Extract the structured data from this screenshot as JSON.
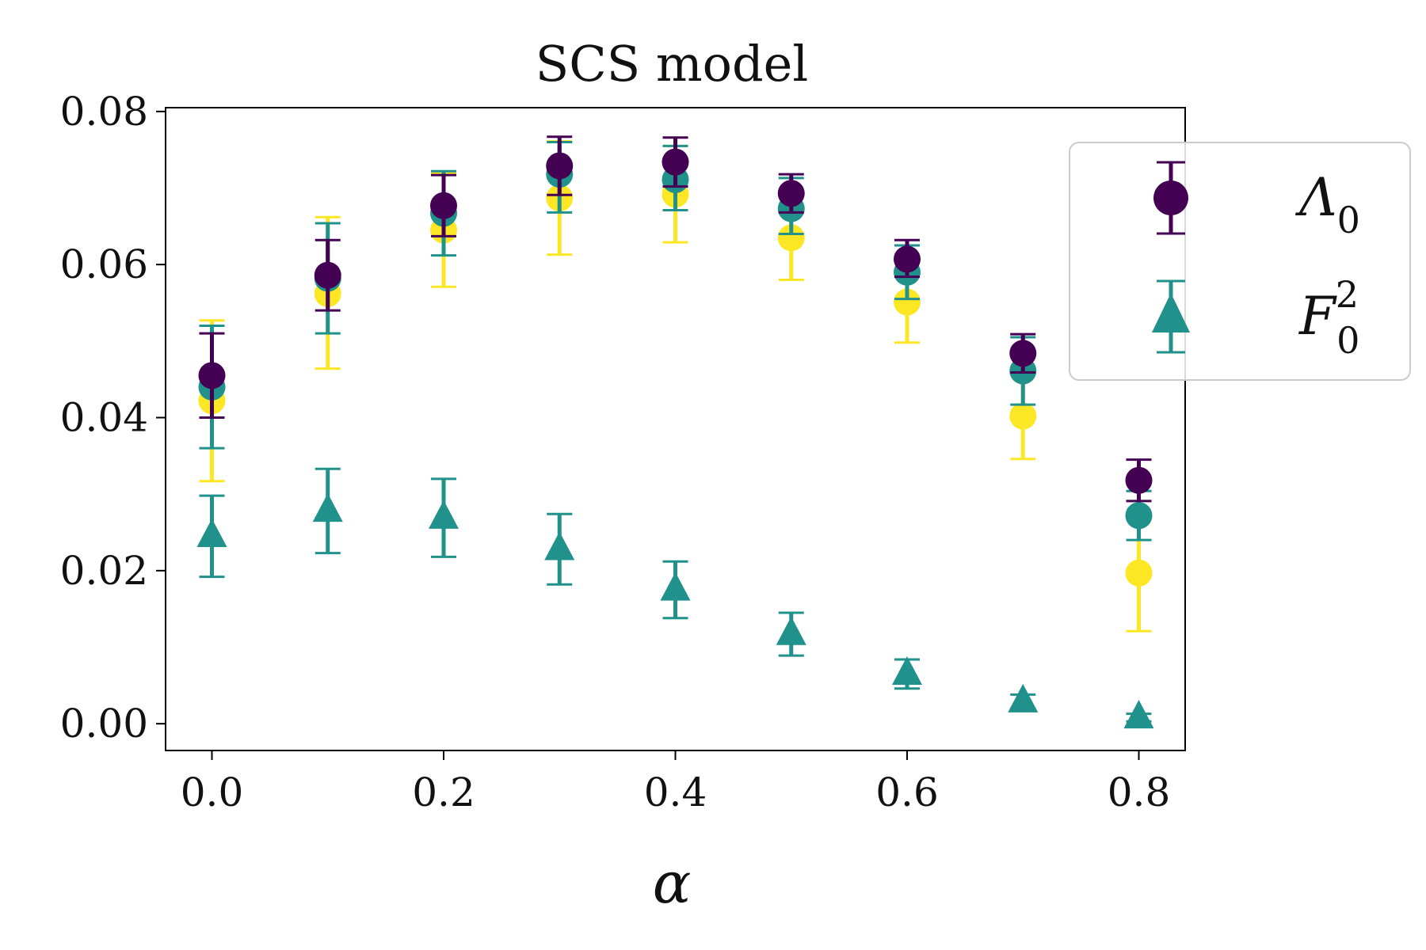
{
  "chart_data": {
    "type": "scatter",
    "title": "SCS model",
    "xlabel": "α",
    "ylabel": "",
    "xlim": [
      -0.04,
      0.84
    ],
    "ylim": [
      -0.0035,
      0.0805
    ],
    "x_ticks": [
      0.0,
      0.2,
      0.4,
      0.6,
      0.8
    ],
    "x_tick_labels": [
      "0.0",
      "0.2",
      "0.4",
      "0.6",
      "0.8"
    ],
    "y_ticks": [
      0.0,
      0.02,
      0.04,
      0.06,
      0.08
    ],
    "y_tick_labels": [
      "0.00",
      "0.02",
      "0.04",
      "0.06",
      "0.08"
    ],
    "x": [
      0.0,
      0.1,
      0.2,
      0.3,
      0.4,
      0.5,
      0.6,
      0.7,
      0.8
    ],
    "legend": {
      "placement": "outside top-right",
      "entries": [
        {
          "label": "Λ",
          "subscript": "0",
          "superscript": "",
          "marker": "circle",
          "color": "#440154"
        },
        {
          "label": "F",
          "subscript": "0",
          "superscript": "2",
          "marker": "triangle",
          "color": "#21918c"
        }
      ]
    },
    "series": [
      {
        "name": "Λ0",
        "marker": "circle",
        "color": "#fde725",
        "in_legend": false,
        "values": [
          0.0422,
          0.0562,
          0.0645,
          0.0687,
          0.0692,
          0.0635,
          0.0551,
          0.0402,
          0.0197
        ],
        "err_low": [
          0.0105,
          0.0098,
          0.0074,
          0.0074,
          0.0063,
          0.0055,
          0.0053,
          0.0056,
          0.0076
        ],
        "err_high": [
          0.0105,
          0.01,
          0.0074,
          0.0074,
          0.0063,
          0.0055,
          0.0053,
          0.0056,
          0.0078
        ]
      },
      {
        "name": "Λ0",
        "marker": "circle",
        "color": "#21918c",
        "in_legend": false,
        "values": [
          0.044,
          0.0582,
          0.0667,
          0.0718,
          0.0711,
          0.0673,
          0.059,
          0.0461,
          0.0272
        ],
        "err_low": [
          0.008,
          0.0072,
          0.0055,
          0.005,
          0.004,
          0.0033,
          0.0035,
          0.0044,
          0.0032
        ],
        "err_high": [
          0.008,
          0.0072,
          0.0055,
          0.0042,
          0.0044,
          0.004,
          0.0035,
          0.0044,
          0.0032
        ]
      },
      {
        "name": "Λ0",
        "marker": "circle",
        "color": "#440154",
        "in_legend": true,
        "values": [
          0.0455,
          0.0586,
          0.0677,
          0.0729,
          0.0734,
          0.0693,
          0.0607,
          0.0484,
          0.0318
        ],
        "err_low": [
          0.0055,
          0.0046,
          0.004,
          0.0038,
          0.0032,
          0.0025,
          0.0023,
          0.0025,
          0.0027
        ],
        "err_high": [
          0.0055,
          0.0046,
          0.004,
          0.0038,
          0.0032,
          0.0025,
          0.0025,
          0.0025,
          0.0027
        ]
      },
      {
        "name": "F0²",
        "marker": "triangle",
        "color": "#21918c",
        "in_legend": true,
        "values": [
          0.0245,
          0.0278,
          0.0269,
          0.0228,
          0.0175,
          0.0117,
          0.0065,
          0.0029,
          0.0008
        ],
        "err_low": [
          0.0053,
          0.0055,
          0.0051,
          0.0046,
          0.0037,
          0.0028,
          0.0019,
          0.0009,
          0.0005
        ],
        "err_high": [
          0.0053,
          0.0055,
          0.0051,
          0.0046,
          0.0037,
          0.0028,
          0.0019,
          0.0009,
          0.0005
        ]
      }
    ]
  }
}
